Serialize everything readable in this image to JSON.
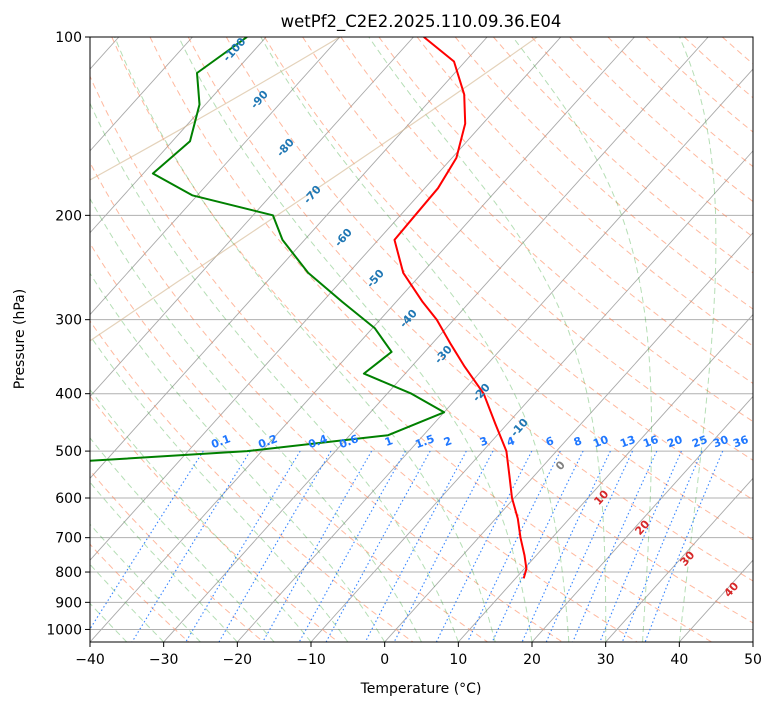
{
  "chart_data": {
    "type": "line",
    "subtype": "skew-T log-P diagram",
    "title": "wetPf2_C2E2.2025.110.09.36.E04",
    "xlabel": "Temperature (°C)",
    "ylabel": "Pressure (hPa)",
    "xlim": [
      -40,
      50
    ],
    "ylim": [
      1050,
      100
    ],
    "x_ticks": [
      -40,
      -30,
      -20,
      -10,
      0,
      10,
      20,
      30,
      40,
      50
    ],
    "x_tick_labels": [
      "−40",
      "−30",
      "−20",
      "−10",
      "0",
      "10",
      "20",
      "30",
      "40",
      "50"
    ],
    "y_ticks": [
      100,
      200,
      300,
      400,
      500,
      600,
      700,
      800,
      900,
      1000
    ],
    "y_tick_labels": [
      "100",
      "200",
      "300",
      "400",
      "500",
      "600",
      "700",
      "800",
      "900",
      "1000"
    ],
    "grid": true,
    "colors": {
      "temperature": "#ff0000",
      "dewpoint": "#008000",
      "isotherm": "#a9a9a9",
      "dry_adiabat": "#ff7f50",
      "moist_adiabat": "#2ca02c",
      "mixing_ratio": "#1f77ff",
      "isotherm_label": "#1f77b4",
      "zero_label": "#808080",
      "warm_label": "#d62728",
      "curved_line": "#d2b48c"
    },
    "series": [
      {
        "name": "Temperature",
        "color": "#ff0000",
        "points": [
          {
            "p": 100,
            "t": -68.6
          },
          {
            "p": 110,
            "t": -61.5
          },
          {
            "p": 125,
            "t": -56.1
          },
          {
            "p": 140,
            "t": -52.4
          },
          {
            "p": 160,
            "t": -49.4
          },
          {
            "p": 180,
            "t": -48.2
          },
          {
            "p": 200,
            "t": -48.0
          },
          {
            "p": 220,
            "t": -47.8
          },
          {
            "p": 250,
            "t": -42.6
          },
          {
            "p": 280,
            "t": -36.4
          },
          {
            "p": 300,
            "t": -32.3
          },
          {
            "p": 330,
            "t": -27.4
          },
          {
            "p": 360,
            "t": -22.8
          },
          {
            "p": 400,
            "t": -16.9
          },
          {
            "p": 450,
            "t": -11.6
          },
          {
            "p": 500,
            "t": -6.8
          },
          {
            "p": 550,
            "t": -3.4
          },
          {
            "p": 600,
            "t": -0.3
          },
          {
            "p": 650,
            "t": 3.0
          },
          {
            "p": 700,
            "t": 5.7
          },
          {
            "p": 750,
            "t": 8.4
          },
          {
            "p": 790,
            "t": 10.3
          },
          {
            "p": 820,
            "t": 11.1
          }
        ]
      },
      {
        "name": "Dewpoint",
        "color": "#008000",
        "points": [
          {
            "p": 100,
            "t": -92.6
          },
          {
            "p": 115,
            "t": -95.0
          },
          {
            "p": 130,
            "t": -90.8
          },
          {
            "p": 150,
            "t": -87.6
          },
          {
            "p": 170,
            "t": -88.7
          },
          {
            "p": 185,
            "t": -80.7
          },
          {
            "p": 200,
            "t": -67.3
          },
          {
            "p": 220,
            "t": -63.0
          },
          {
            "p": 250,
            "t": -55.5
          },
          {
            "p": 280,
            "t": -47.3
          },
          {
            "p": 310,
            "t": -39.7
          },
          {
            "p": 340,
            "t": -34.5
          },
          {
            "p": 370,
            "t": -35.6
          },
          {
            "p": 400,
            "t": -26.7
          },
          {
            "p": 430,
            "t": -20.0
          },
          {
            "p": 470,
            "t": -24.8
          },
          {
            "p": 500,
            "t": -42.0
          },
          {
            "p": 520,
            "t": -63.0
          },
          {
            "p": 560,
            "t": -73.7
          },
          {
            "p": 600,
            "t": -61.5
          },
          {
            "p": 640,
            "t": -59.6
          },
          {
            "p": 680,
            "t": -54.5
          },
          {
            "p": 720,
            "t": -59.6
          },
          {
            "p": 760,
            "t": -56.6
          },
          {
            "p": 790,
            "t": -70.0
          },
          {
            "p": 820,
            "t": -97.0
          },
          {
            "p": 825,
            "t": -75.0
          }
        ]
      }
    ],
    "isotherm_labels": [
      "-100",
      "-90",
      "-80",
      "-70",
      "-60",
      "-50",
      "-40",
      "-30",
      "-20",
      "-10",
      "0",
      "10",
      "20",
      "30",
      "40"
    ],
    "mixing_ratio_labels": [
      "0.1",
      "0.2",
      "0.4",
      "0.6",
      "1",
      "1.5",
      "2",
      "3",
      "4",
      "6",
      "8",
      "10",
      "13",
      "16",
      "20",
      "25",
      "30",
      "36"
    ]
  }
}
